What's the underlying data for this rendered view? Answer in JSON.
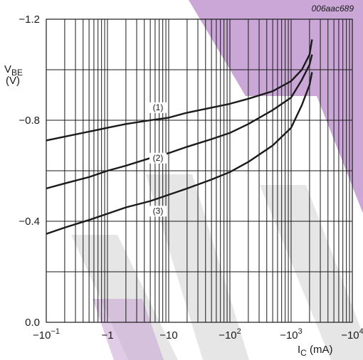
{
  "figure_code": "006aac689",
  "watermark": {
    "color_purple": "#c8a2d6",
    "color_grey": "#e6e6e6"
  },
  "chart_data": {
    "type": "line",
    "x_scale": "log",
    "xlabel_main": "I",
    "xlabel_sub": "C",
    "xlabel_unit": " (mA)",
    "ylabel_main": "V",
    "ylabel_sub": "BE",
    "ylabel_unit": "(V)",
    "xlim": [
      -0.1,
      -10000
    ],
    "ylim": [
      0.0,
      -1.2
    ],
    "y_ticks": [
      {
        "value": 0.0,
        "label": "0.0"
      },
      {
        "value": -0.4,
        "label": "−0.4"
      },
      {
        "value": -0.8,
        "label": "−0.8"
      },
      {
        "value": -1.2,
        "label": "−1.2"
      }
    ],
    "x_ticks": [
      {
        "value": -0.1,
        "base": "−10",
        "exp": "−1"
      },
      {
        "value": -1,
        "base": "−1",
        "exp": ""
      },
      {
        "value": -10,
        "base": "−10",
        "exp": ""
      },
      {
        "value": -100,
        "base": "−10",
        "exp": "2"
      },
      {
        "value": -1000,
        "base": "−10",
        "exp": "3"
      },
      {
        "value": -10000,
        "base": "−10",
        "exp": "4"
      }
    ],
    "grid": true,
    "series": [
      {
        "name": "(1)",
        "label_at": [
          -10,
          -0.84
        ],
        "points": [
          [
            -0.1,
            -0.72
          ],
          [
            -0.2,
            -0.735
          ],
          [
            -0.5,
            -0.755
          ],
          [
            -1,
            -0.77
          ],
          [
            -2,
            -0.785
          ],
          [
            -5,
            -0.8
          ],
          [
            -10,
            -0.81
          ],
          [
            -20,
            -0.83
          ],
          [
            -50,
            -0.85
          ],
          [
            -100,
            -0.865
          ],
          [
            -200,
            -0.885
          ],
          [
            -500,
            -0.915
          ],
          [
            -1000,
            -0.955
          ],
          [
            -1500,
            -1.0
          ],
          [
            -2000,
            -1.06
          ],
          [
            -2200,
            -1.12
          ]
        ]
      },
      {
        "name": "(2)",
        "label_at": [
          -10,
          -0.64
        ],
        "points": [
          [
            -0.1,
            -0.53
          ],
          [
            -0.2,
            -0.55
          ],
          [
            -0.5,
            -0.575
          ],
          [
            -1,
            -0.6
          ],
          [
            -2,
            -0.62
          ],
          [
            -5,
            -0.65
          ],
          [
            -10,
            -0.67
          ],
          [
            -20,
            -0.695
          ],
          [
            -50,
            -0.725
          ],
          [
            -100,
            -0.75
          ],
          [
            -200,
            -0.785
          ],
          [
            -500,
            -0.84
          ],
          [
            -1000,
            -0.89
          ],
          [
            -1500,
            -0.96
          ],
          [
            -2000,
            -1.02
          ],
          [
            -2200,
            -1.06
          ]
        ]
      },
      {
        "name": "(3)",
        "label_at": [
          -10,
          -0.43
        ],
        "points": [
          [
            -0.1,
            -0.35
          ],
          [
            -0.2,
            -0.375
          ],
          [
            -0.5,
            -0.405
          ],
          [
            -1,
            -0.43
          ],
          [
            -2,
            -0.455
          ],
          [
            -5,
            -0.48
          ],
          [
            -10,
            -0.505
          ],
          [
            -20,
            -0.53
          ],
          [
            -50,
            -0.565
          ],
          [
            -100,
            -0.595
          ],
          [
            -200,
            -0.635
          ],
          [
            -500,
            -0.7
          ],
          [
            -1000,
            -0.77
          ],
          [
            -1500,
            -0.86
          ],
          [
            -2000,
            -0.94
          ],
          [
            -2200,
            -0.99
          ]
        ]
      }
    ]
  }
}
